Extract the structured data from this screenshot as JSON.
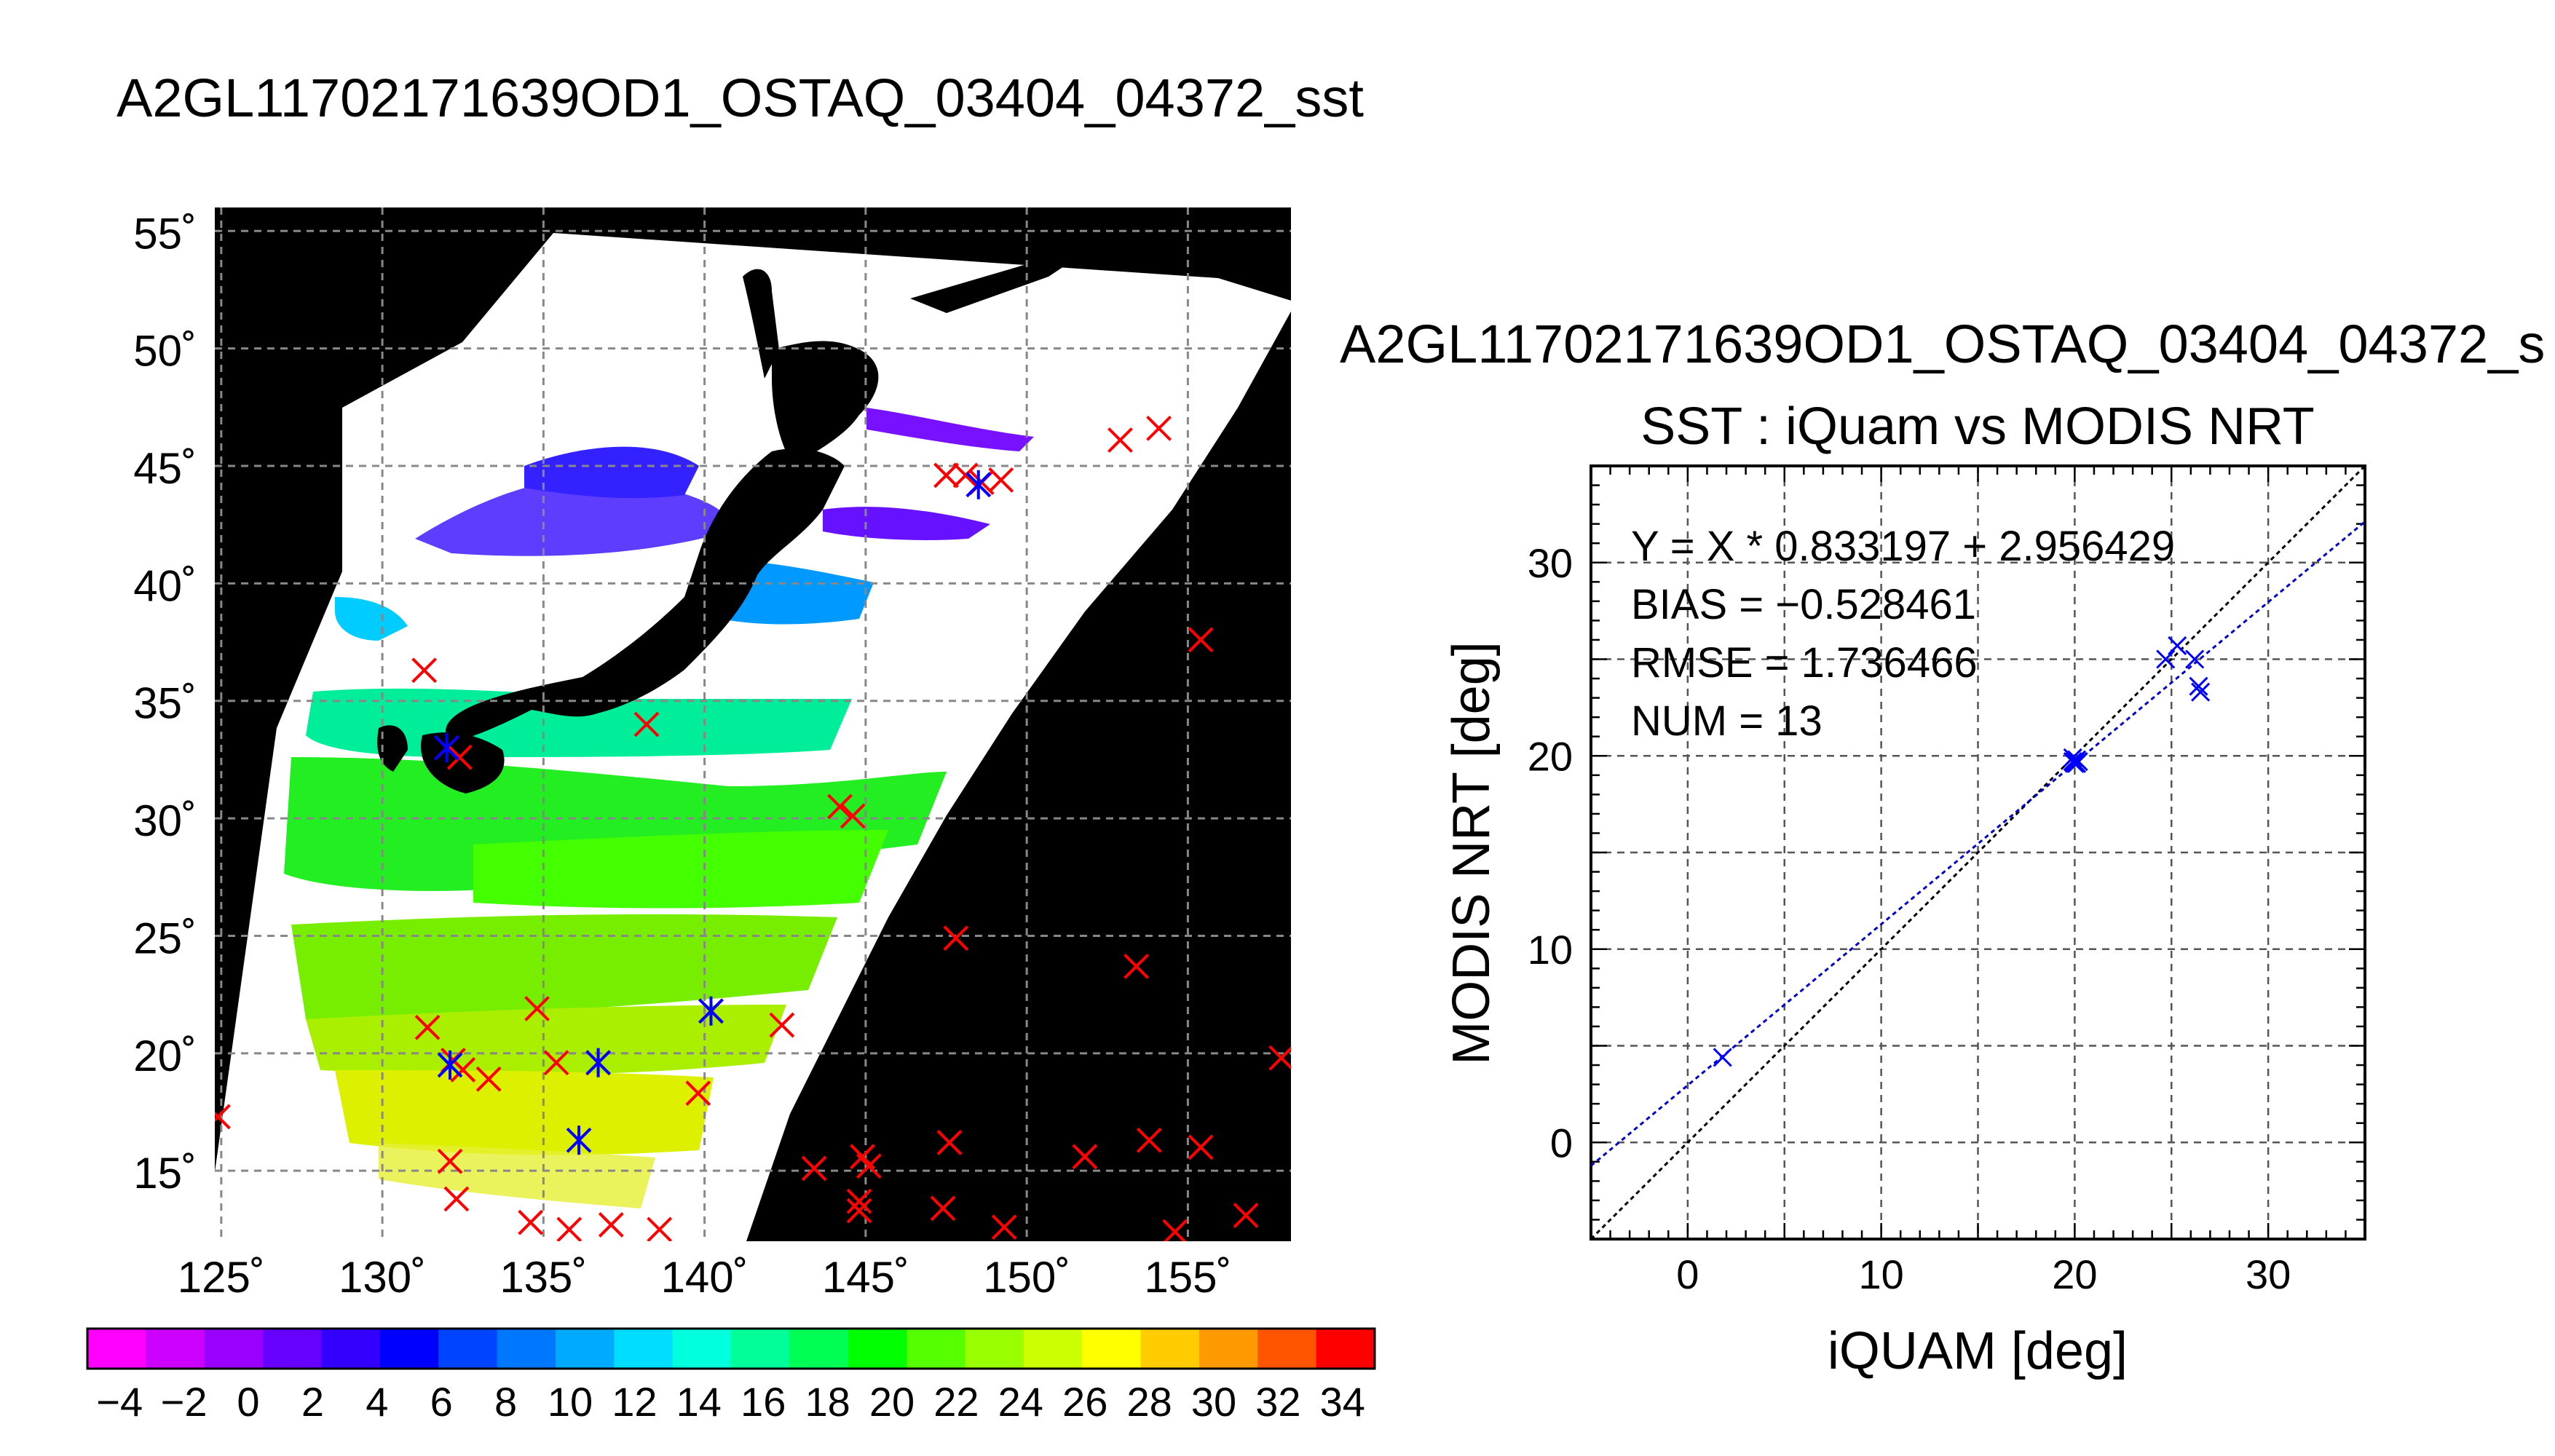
{
  "page_title": "A2GL11702171639OD1_OSTAQ_03404_04372_sst",
  "scatter_file_title": "A2GL11702171639OD1_OSTAQ_03404_04372_s",
  "chart_data": [
    {
      "type": "map",
      "title": "A2GL11702171639OD1_OSTAQ_03404_04372_sst",
      "lat_ticks": [
        "55˚",
        "50˚",
        "45˚",
        "40˚",
        "35˚",
        "30˚",
        "25˚",
        "20˚",
        "15˚"
      ],
      "lat_values": [
        55,
        50,
        45,
        40,
        35,
        30,
        25,
        20,
        15
      ],
      "lon_ticks": [
        "125˚",
        "130˚",
        "135˚",
        "140˚",
        "145˚",
        "150˚",
        "155˚"
      ],
      "lon_values": [
        125,
        130,
        135,
        140,
        145,
        150,
        155
      ],
      "lon_range": [
        124.8,
        158.2
      ],
      "lat_range": [
        12,
        56
      ],
      "grid": true,
      "colorbar": {
        "range": [
          -5,
          35
        ],
        "tick_labels": [
          "−4",
          "−2",
          "0",
          "2",
          "4",
          "6",
          "8",
          "10",
          "12",
          "14",
          "16",
          "18",
          "20",
          "22",
          "24",
          "26",
          "28",
          "30",
          "32",
          "34"
        ],
        "tick_values": [
          -4,
          -2,
          0,
          2,
          4,
          6,
          8,
          10,
          12,
          14,
          16,
          18,
          20,
          22,
          24,
          26,
          28,
          30,
          32,
          34
        ],
        "colors": [
          "#ff00ff",
          "#cc00ff",
          "#9900ff",
          "#6600ff",
          "#3300ff",
          "#0000ff",
          "#0044ff",
          "#0077ff",
          "#00aaff",
          "#00ddff",
          "#00ffdd",
          "#00ff99",
          "#00ff55",
          "#00ff00",
          "#55ff00",
          "#99ff00",
          "#ccff00",
          "#ffff00",
          "#ffcc00",
          "#ff9900",
          "#ff5500",
          "#ff0000"
        ]
      },
      "red_markers": [
        [
          124.9,
          17.3
        ],
        [
          131.3,
          36.3
        ],
        [
          132,
          33
        ],
        [
          132.4,
          32.6
        ],
        [
          132.1,
          15.4
        ],
        [
          132.3,
          13.8
        ],
        [
          131.4,
          21.1
        ],
        [
          132.2,
          19.7
        ],
        [
          132.5,
          19.3
        ],
        [
          133.3,
          18.9
        ],
        [
          134.8,
          21.9
        ],
        [
          135.4,
          19.6
        ],
        [
          136.7,
          19.6
        ],
        [
          134.6,
          12.8
        ],
        [
          135.8,
          12.5
        ],
        [
          137.1,
          12.7
        ],
        [
          138.6,
          12.5
        ],
        [
          138.2,
          34
        ],
        [
          139.8,
          18.3
        ],
        [
          140.2,
          21.8
        ],
        [
          142.4,
          21.2
        ],
        [
          143.4,
          15.1
        ],
        [
          144.2,
          30.5
        ],
        [
          144.6,
          30.1
        ],
        [
          144.9,
          15.6
        ],
        [
          145.1,
          15.2
        ],
        [
          144.8,
          13.7
        ],
        [
          144.8,
          13.3
        ],
        [
          147.5,
          44.6
        ],
        [
          148.1,
          44.6
        ],
        [
          148.6,
          44.3
        ],
        [
          149.2,
          44.4
        ],
        [
          147.8,
          24.9
        ],
        [
          147.6,
          16.2
        ],
        [
          147.4,
          13.4
        ],
        [
          149.3,
          12.6
        ],
        [
          151.8,
          15.6
        ],
        [
          153.4,
          23.7
        ],
        [
          153.8,
          16.3
        ],
        [
          154.6,
          12.4
        ],
        [
          155.4,
          16
        ],
        [
          156.8,
          13.1
        ],
        [
          152.9,
          46.1
        ],
        [
          154.1,
          46.6
        ],
        [
          155.4,
          37.6
        ],
        [
          157.9,
          19.8
        ]
      ],
      "blue_markers": [
        [
          132,
          33
        ],
        [
          132.1,
          19.5
        ],
        [
          136.1,
          16.3
        ],
        [
          136.7,
          19.6
        ],
        [
          140.2,
          21.8
        ],
        [
          148.5,
          44.2
        ]
      ]
    },
    {
      "type": "scatter",
      "title": "SST : iQuam vs MODIS NRT",
      "xlabel": "iQUAM [deg]",
      "ylabel": "MODIS NRT [deg]",
      "xlim": [
        -5,
        35
      ],
      "ylim": [
        -5,
        35
      ],
      "x_ticks": [
        "0",
        "10",
        "20",
        "30"
      ],
      "x_tick_values": [
        0,
        10,
        20,
        30
      ],
      "y_ticks": [
        "0",
        "10",
        "20",
        "30"
      ],
      "y_tick_values": [
        0,
        10,
        20,
        30
      ],
      "grid": true,
      "annotations": [
        "Y = X * 0.833197 + 2.956429",
        "BIAS = −0.528461",
        "RMSE = 1.736466",
        "NUM = 13"
      ],
      "fit": {
        "slope": 0.833197,
        "intercept": 2.956429
      },
      "points": {
        "x": [
          1.8,
          19.9,
          20.1,
          20.0,
          20.2,
          19.9,
          20.1,
          24.7,
          25.3,
          26.2,
          26.4,
          26.5,
          20.0
        ],
        "y": [
          4.4,
          19.7,
          19.8,
          19.6,
          19.7,
          19.9,
          19.6,
          25.0,
          25.7,
          25.0,
          23.6,
          23.3,
          19.7
        ]
      },
      "colors": {
        "points": "#0000ff",
        "fit_line": "#0000cc",
        "identity_line": "#000000"
      }
    }
  ]
}
